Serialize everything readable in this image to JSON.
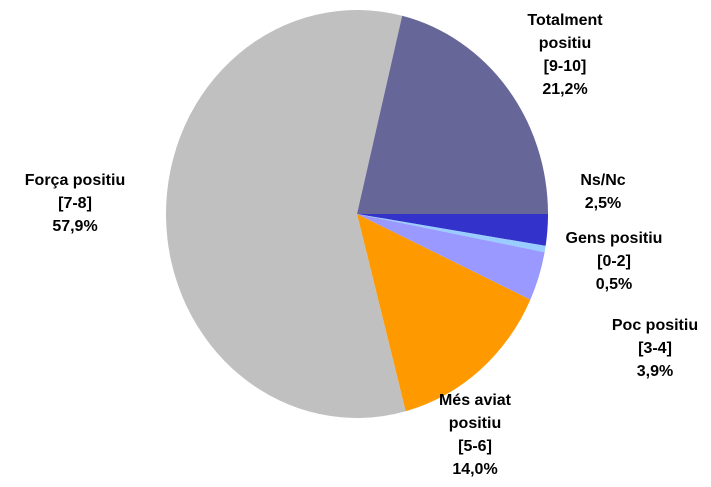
{
  "chart_data": {
    "type": "pie",
    "categories": [
      "Ns/Nc",
      "Gens positiu\n[0-2]",
      "Poc positiu\n[3-4]",
      "Més aviat\npositiu\n[5-6]",
      "Força positiu\n[7-8]",
      "Totalment\npositiu\n[9-10]"
    ],
    "values": [
      2.5,
      0.5,
      3.9,
      14.0,
      57.9,
      21.2
    ],
    "value_labels": [
      "2,5%",
      "0,5%",
      "3,9%",
      "14,0%",
      "57,9%",
      "21,2%"
    ],
    "colors": [
      "#3333cc",
      "#99ccff",
      "#9999ff",
      "#ff9900",
      "#c0c0c0",
      "#666699"
    ]
  }
}
